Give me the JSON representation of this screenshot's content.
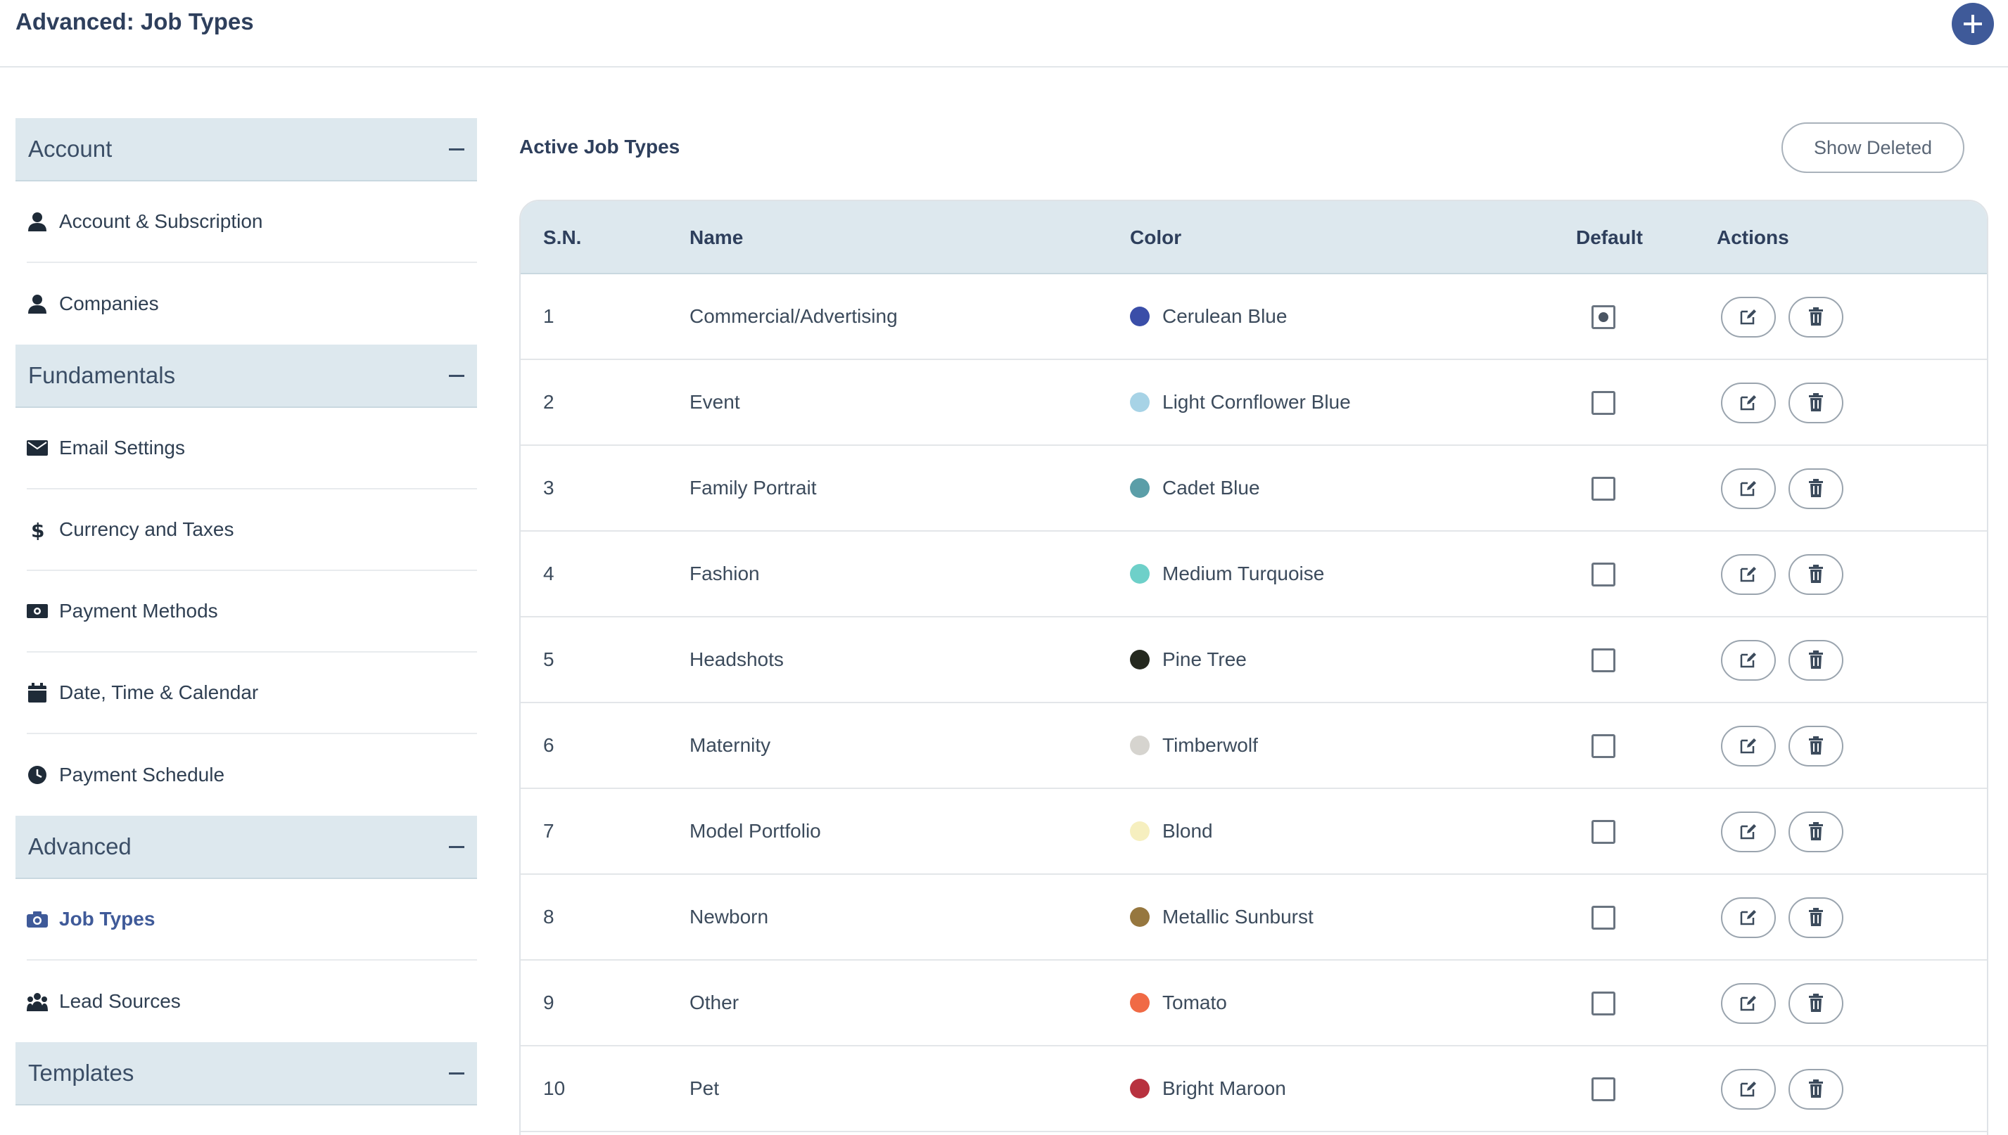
{
  "header": {
    "title": "Advanced: Job Types",
    "add_icon": "plus-icon",
    "accent": "#3f5a99"
  },
  "sidebar": {
    "sections": [
      {
        "title": "Account",
        "items": [
          {
            "label": "Account & Subscription",
            "icon": "user-icon"
          },
          {
            "label": "Companies",
            "icon": "user-icon"
          }
        ]
      },
      {
        "title": "Fundamentals",
        "items": [
          {
            "label": "Email Settings",
            "icon": "envelope-icon"
          },
          {
            "label": "Currency and Taxes",
            "icon": "dollar-icon"
          },
          {
            "label": "Payment Methods",
            "icon": "money-icon"
          },
          {
            "label": "Date, Time & Calendar",
            "icon": "calendar-icon"
          },
          {
            "label": "Payment Schedule",
            "icon": "clock-icon"
          }
        ]
      },
      {
        "title": "Advanced",
        "items": [
          {
            "label": "Job Types",
            "icon": "camera-icon",
            "active": true
          },
          {
            "label": "Lead Sources",
            "icon": "people-icon"
          }
        ]
      },
      {
        "title": "Templates",
        "items": []
      }
    ]
  },
  "main": {
    "title": "Active Job Types",
    "show_deleted_label": "Show Deleted",
    "columns": {
      "sn": "S.N.",
      "name": "Name",
      "color": "Color",
      "default": "Default",
      "actions": "Actions"
    },
    "rows": [
      {
        "sn": "1",
        "name": "Commercial/Advertising",
        "color_name": "Cerulean Blue",
        "color_hex": "#3a4ea8",
        "default": true
      },
      {
        "sn": "2",
        "name": "Event",
        "color_name": "Light Cornflower Blue",
        "color_hex": "#a7d3e6",
        "default": false
      },
      {
        "sn": "3",
        "name": "Family Portrait",
        "color_name": "Cadet Blue",
        "color_hex": "#5b9ea8",
        "default": false
      },
      {
        "sn": "4",
        "name": "Fashion",
        "color_name": "Medium Turquoise",
        "color_hex": "#6ed0c9",
        "default": false
      },
      {
        "sn": "5",
        "name": "Headshots",
        "color_name": "Pine Tree",
        "color_hex": "#25291f",
        "default": false
      },
      {
        "sn": "6",
        "name": "Maternity",
        "color_name": "Timberwolf",
        "color_hex": "#d6d4cf",
        "default": false
      },
      {
        "sn": "7",
        "name": "Model Portfolio",
        "color_name": "Blond",
        "color_hex": "#f6efbf",
        "default": false
      },
      {
        "sn": "8",
        "name": "Newborn",
        "color_name": "Metallic Sunburst",
        "color_hex": "#96773f",
        "default": false
      },
      {
        "sn": "9",
        "name": "Other",
        "color_name": "Tomato",
        "color_hex": "#f06a45",
        "default": false
      },
      {
        "sn": "10",
        "name": "Pet",
        "color_name": "Bright Maroon",
        "color_hex": "#b8323f",
        "default": false
      }
    ]
  }
}
